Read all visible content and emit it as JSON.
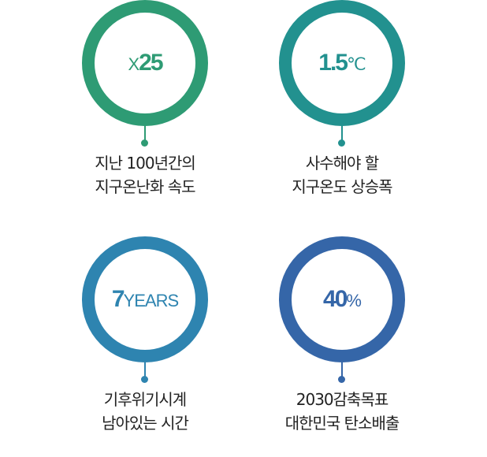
{
  "items": [
    {
      "value_prefix": "X",
      "value_main": "25",
      "value_suffix": "",
      "caption_line1": "지난 100년간의",
      "caption_line2": "지구온난화 속도",
      "color": "#2e9b74"
    },
    {
      "value_prefix": "",
      "value_main": "1.5",
      "value_suffix": "℃",
      "caption_line1": "사수해야 할",
      "caption_line2": "지구온도 상승폭",
      "color": "#22918f"
    },
    {
      "value_prefix": "",
      "value_main": "7",
      "value_suffix": "YEARS",
      "caption_line1": "기후위기시계",
      "caption_line2": "남아있는 시간",
      "color": "#2e84b0"
    },
    {
      "value_prefix": "",
      "value_main": "40",
      "value_suffix": "%",
      "caption_line1": "2030감축목표",
      "caption_line2": "대한민국 탄소배출",
      "color": "#3566a8"
    }
  ]
}
